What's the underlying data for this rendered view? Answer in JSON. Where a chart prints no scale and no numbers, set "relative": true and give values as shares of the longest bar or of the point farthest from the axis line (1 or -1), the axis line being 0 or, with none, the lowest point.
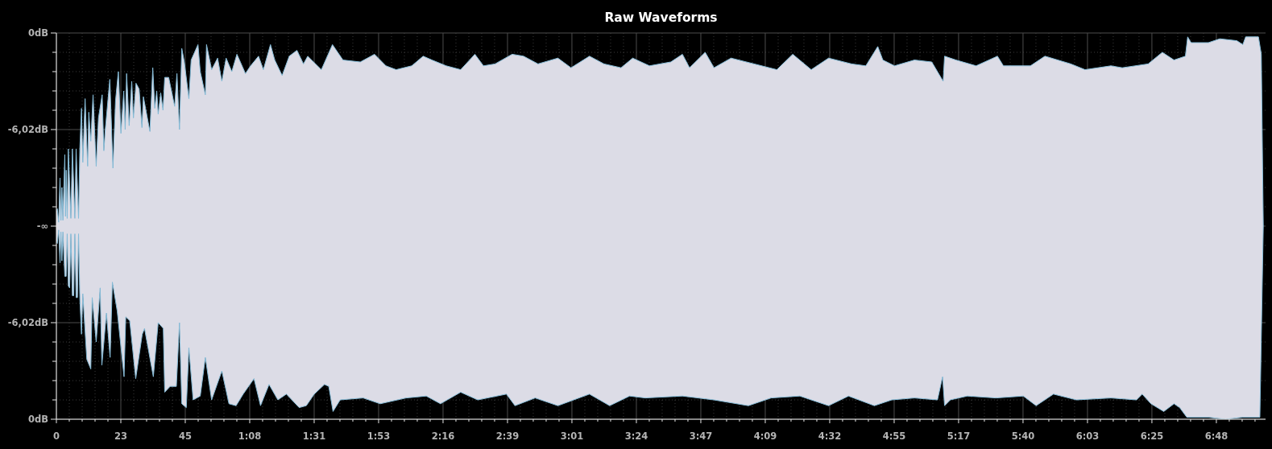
{
  "chart_data": {
    "type": "area",
    "title": "Raw Waveforms",
    "relative": true,
    "annotations": [
      "0dB",
      "-6,02dB",
      "-∞",
      "-6,02dB",
      "0dB"
    ],
    "xlim": [
      0,
      425.3
    ],
    "xticks": [
      0,
      {
        "value": 4.53,
        "label": null
      },
      {
        "value": 9.07,
        "label": null
      },
      {
        "value": 13.6,
        "label": null
      },
      {
        "value": 18.13,
        "label": null
      },
      {
        "value": 22.67,
        "label": "23"
      },
      {
        "value": 27.2,
        "label": null
      },
      {
        "value": 31.73,
        "label": null
      },
      {
        "value": 36.27,
        "label": null
      },
      {
        "value": 40.8,
        "label": null
      },
      {
        "value": 45.33,
        "label": "45"
      },
      {
        "value": 49.87,
        "label": null
      },
      {
        "value": 54.4,
        "label": null
      },
      {
        "value": 58.93,
        "label": null
      },
      {
        "value": 63.47,
        "label": null
      },
      {
        "value": 68,
        "label": "1:08"
      },
      {
        "value": 72.53,
        "label": null
      },
      {
        "value": 77.07,
        "label": null
      },
      {
        "value": 81.6,
        "label": null
      },
      {
        "value": 86.13,
        "label": null
      },
      {
        "value": 90.67,
        "label": "1:31"
      },
      {
        "value": 95.2,
        "label": null
      },
      {
        "value": 99.73,
        "label": null
      },
      {
        "value": 104.27,
        "label": null
      },
      {
        "value": 108.8,
        "label": null
      },
      {
        "value": 113.33,
        "label": "1:53"
      },
      {
        "value": 117.87,
        "label": null
      },
      {
        "value": 122.4,
        "label": null
      },
      {
        "value": 126.93,
        "label": null
      },
      {
        "value": 131.47,
        "label": null
      },
      {
        "value": 136,
        "label": "2:16"
      },
      {
        "value": 140.53,
        "label": null
      },
      {
        "value": 145.07,
        "label": null
      },
      {
        "value": 149.6,
        "label": null
      },
      {
        "value": 154.13,
        "label": null
      },
      {
        "value": 158.67,
        "label": "2:39"
      },
      {
        "value": 163.2,
        "label": null
      },
      {
        "value": 167.73,
        "label": null
      },
      {
        "value": 172.27,
        "label": null
      },
      {
        "value": 176.8,
        "label": null
      },
      {
        "value": 181.33,
        "label": "3:01"
      },
      {
        "value": 185.87,
        "label": null
      },
      {
        "value": 190.4,
        "label": null
      },
      {
        "value": 194.93,
        "label": null
      },
      {
        "value": 199.47,
        "label": null
      },
      {
        "value": 204,
        "label": "3:24"
      },
      {
        "value": 208.53,
        "label": null
      },
      {
        "value": 213.07,
        "label": null
      },
      {
        "value": 217.6,
        "label": null
      },
      {
        "value": 222.13,
        "label": null
      },
      {
        "value": 226.67,
        "label": "3:47"
      },
      {
        "value": 231.2,
        "label": null
      },
      {
        "value": 235.73,
        "label": null
      },
      {
        "value": 240.27,
        "label": null
      },
      {
        "value": 244.8,
        "label": null
      },
      {
        "value": 249.33,
        "label": "4:09"
      },
      {
        "value": 253.87,
        "label": null
      },
      {
        "value": 258.4,
        "label": null
      },
      {
        "value": 262.93,
        "label": null
      },
      {
        "value": 267.47,
        "label": null
      },
      {
        "value": 272,
        "label": "4:32"
      },
      {
        "value": 276.53,
        "label": null
      },
      {
        "value": 281.07,
        "label": null
      },
      {
        "value": 285.6,
        "label": null
      },
      {
        "value": 290.13,
        "label": null
      },
      {
        "value": 294.67,
        "label": "4:55"
      },
      {
        "value": 299.2,
        "label": null
      },
      {
        "value": 303.73,
        "label": null
      },
      {
        "value": 308.27,
        "label": null
      },
      {
        "value": 312.8,
        "label": null
      },
      {
        "value": 317.33,
        "label": "5:17"
      },
      {
        "value": 321.87,
        "label": null
      },
      {
        "value": 326.4,
        "label": null
      },
      {
        "value": 330.93,
        "label": null
      },
      {
        "value": 335.47,
        "label": null
      },
      {
        "value": 340,
        "label": "5:40"
      },
      {
        "value": 344.53,
        "label": null
      },
      {
        "value": 349.07,
        "label": null
      },
      {
        "value": 353.6,
        "label": null
      },
      {
        "value": 358.13,
        "label": null
      },
      {
        "value": 362.67,
        "label": "6:03"
      },
      {
        "value": 367.2,
        "label": null
      },
      {
        "value": 371.73,
        "label": null
      },
      {
        "value": 376.27,
        "label": null
      },
      {
        "value": 380.8,
        "label": null
      },
      {
        "value": 385.33,
        "label": "6:25"
      },
      {
        "value": 389.87,
        "label": null
      },
      {
        "value": 394.4,
        "label": null
      },
      {
        "value": 398.93,
        "label": null
      },
      {
        "value": 403.47,
        "label": null
      },
      {
        "value": 408,
        "label": "6:48"
      },
      {
        "value": 412.53,
        "label": null
      },
      {
        "value": 417.07,
        "label": null
      },
      {
        "value": 421.6,
        "label": null
      }
    ],
    "grid": true,
    "series": [
      {
        "color": "#dcdce6",
        "x": [
          0,
          0.33,
          0.8,
          1.28,
          1.6,
          1.94,
          2.3,
          2.97,
          3.2,
          3.45,
          3.8,
          4.2,
          5.1,
          5.62,
          6.5,
          6.94,
          7.8,
          8.27,
          8.83,
          9.3,
          10.1,
          11.0,
          11.4,
          12.1,
          12.9,
          14.0,
          14.8,
          16.1,
          16.7,
          17.2,
          18.8,
          19.9,
          20.8,
          21.8,
          22.7,
          23.7,
          24.2,
          24.7,
          25.6,
          26.5,
          27.1,
          28.0,
          29.1,
          30.1,
          30.6,
          32.9,
          33.9,
          34.6,
          35.3,
          35.8,
          36.7,
          37.5,
          38.1,
          39.5,
          41.6,
          42.4,
          43.3,
          44.1,
          45.0,
          46.6,
          47.4,
          49.8,
          50.6,
          52.4,
          52.8,
          54.6,
          56.7,
          58.2,
          59.7,
          61.7,
          63.5,
          66.5,
          68.3,
          71.1,
          72.8,
          75.3,
          76.8,
          79.4,
          81.9,
          84.6,
          86.9,
          88.4,
          93.2,
          97.1,
          100.8,
          106.9,
          111.9,
          115.9,
          119.5,
          125.0,
          129.0,
          132.1,
          137.1,
          142.2,
          147.2,
          150.2,
          154.3,
          160.3,
          164.3,
          169.4,
          176.4,
          181.0,
          187.5,
          192.6,
          198.6,
          202.7,
          208.6,
          216.1,
          220.2,
          222.7,
          228.2,
          231.3,
          237.3,
          245.4,
          253.4,
          259.0,
          265.5,
          271.6,
          279.7,
          284.7,
          288.9,
          290.7,
          294.8,
          301.8,
          307.9,
          311.9,
          312.4,
          316.4,
          323.5,
          331.0,
          333.1,
          342.6,
          347.7,
          356.8,
          361.8,
          370.9,
          374.9,
          384.0,
          389.0,
          393.1,
          397.1,
          397.9,
          399.1,
          405.2,
          409.2,
          415.2,
          417.3,
          418.3,
          422.8,
          423.8,
          424.5
        ],
        "values": [
          0.08,
          0.09,
          0.02,
          0.25,
          0.03,
          0.2,
          0.03,
          0.37,
          0.05,
          0.29,
          0.04,
          0.4,
          0.04,
          0.4,
          0.04,
          0.4,
          0.04,
          0.41,
          0.61,
          0.33,
          0.66,
          0.31,
          0.59,
          0.44,
          0.68,
          0.31,
          0.56,
          0.68,
          0.39,
          0.5,
          0.76,
          0.3,
          0.65,
          0.8,
          0.48,
          0.7,
          0.5,
          0.79,
          0.52,
          0.75,
          0.56,
          0.74,
          0.71,
          0.51,
          0.67,
          0.49,
          0.82,
          0.61,
          0.7,
          0.58,
          0.69,
          0.6,
          0.77,
          0.77,
          0.62,
          0.79,
          0.5,
          0.92,
          0.85,
          0.66,
          0.86,
          0.94,
          0.8,
          0.68,
          0.94,
          0.81,
          0.87,
          0.75,
          0.87,
          0.8,
          0.89,
          0.79,
          0.83,
          0.88,
          0.81,
          0.94,
          0.86,
          0.78,
          0.88,
          0.91,
          0.84,
          0.88,
          0.81,
          0.94,
          0.86,
          0.85,
          0.89,
          0.83,
          0.81,
          0.83,
          0.88,
          0.86,
          0.83,
          0.81,
          0.89,
          0.83,
          0.84,
          0.89,
          0.88,
          0.84,
          0.87,
          0.82,
          0.88,
          0.84,
          0.82,
          0.87,
          0.83,
          0.85,
          0.89,
          0.82,
          0.9,
          0.82,
          0.87,
          0.84,
          0.81,
          0.89,
          0.81,
          0.87,
          0.84,
          0.83,
          0.93,
          0.86,
          0.83,
          0.86,
          0.85,
          0.75,
          0.88,
          0.86,
          0.83,
          0.88,
          0.83,
          0.83,
          0.88,
          0.84,
          0.81,
          0.83,
          0.82,
          0.84,
          0.9,
          0.86,
          0.88,
          0.98,
          0.95,
          0.95,
          0.97,
          0.96,
          0.94,
          0.98,
          0.98,
          0.89,
          0
        ]
      },
      {
        "color": "#dcdce6",
        "x": [
          0,
          0.33,
          0.8,
          1.28,
          1.6,
          1.94,
          2.3,
          2.97,
          3.45,
          3.8,
          4.2,
          4.67,
          5.1,
          5.62,
          6.09,
          6.5,
          6.94,
          7.41,
          7.8,
          8.27,
          8.83,
          9.3,
          10.7,
          12.1,
          12.6,
          14.0,
          15.4,
          16.0,
          17.6,
          18.9,
          19.7,
          21.4,
          23.8,
          24.4,
          25.8,
          27.9,
          30.2,
          31.0,
          34.1,
          35.8,
          37.6,
          38.1,
          40.0,
          42.2,
          43.3,
          44.1,
          45.7,
          46.6,
          48.1,
          50.6,
          52.4,
          54.6,
          58.2,
          60.7,
          63.2,
          65.7,
          69.5,
          71.8,
          74.8,
          77.9,
          80.9,
          85.4,
          87.9,
          90.7,
          94.3,
          95.8,
          97.3,
          99.8,
          107.9,
          113.9,
          123.0,
          130.1,
          135.1,
          142.2,
          148.2,
          158.3,
          161.3,
          168.4,
          176.4,
          187.5,
          194.6,
          201.6,
          207.1,
          220.2,
          231.3,
          243.4,
          251.4,
          261.5,
          271.6,
          278.6,
          287.7,
          293.8,
          301.8,
          309.9,
          311.7,
          312.4,
          314.4,
          320.4,
          330.5,
          340.1,
          344.6,
          350.7,
          358.8,
          370.9,
          379.9,
          381.9,
          385.0,
          389.5,
          393.1,
          395.1,
          397.6,
          405.2,
          411.2,
          417.3,
          423.3,
          424.5
        ],
        "values": [
          -0.08,
          -0.09,
          -0.02,
          -0.19,
          -0.03,
          -0.18,
          -0.03,
          -0.26,
          -0.26,
          -0.04,
          -0.31,
          -0.32,
          -0.04,
          -0.36,
          -0.36,
          -0.04,
          -0.37,
          -0.37,
          -0.04,
          -0.38,
          -0.56,
          -0.35,
          -0.69,
          -0.74,
          -0.37,
          -0.6,
          -0.32,
          -0.72,
          -0.45,
          -0.68,
          -0.29,
          -0.44,
          -0.78,
          -0.47,
          -0.49,
          -0.79,
          -0.56,
          -0.53,
          -0.78,
          -0.5,
          -0.53,
          -0.86,
          -0.83,
          -0.83,
          -0.5,
          -0.92,
          -0.94,
          -0.63,
          -0.9,
          -0.88,
          -0.68,
          -0.9,
          -0.75,
          -0.92,
          -0.93,
          -0.87,
          -0.79,
          -0.93,
          -0.82,
          -0.9,
          -0.87,
          -0.94,
          -0.93,
          -0.87,
          -0.82,
          -0.83,
          -0.96,
          -0.9,
          -0.89,
          -0.92,
          -0.89,
          -0.88,
          -0.92,
          -0.86,
          -0.9,
          -0.87,
          -0.93,
          -0.89,
          -0.93,
          -0.87,
          -0.93,
          -0.88,
          -0.89,
          -0.88,
          -0.9,
          -0.93,
          -0.89,
          -0.88,
          -0.93,
          -0.88,
          -0.93,
          -0.9,
          -0.89,
          -0.9,
          -0.78,
          -0.93,
          -0.9,
          -0.88,
          -0.89,
          -0.88,
          -0.93,
          -0.87,
          -0.9,
          -0.89,
          -0.9,
          -0.87,
          -0.92,
          -0.96,
          -0.92,
          -0.94,
          -0.99,
          -0.99,
          -1.0,
          -0.99,
          -0.99,
          0
        ]
      }
    ]
  }
}
